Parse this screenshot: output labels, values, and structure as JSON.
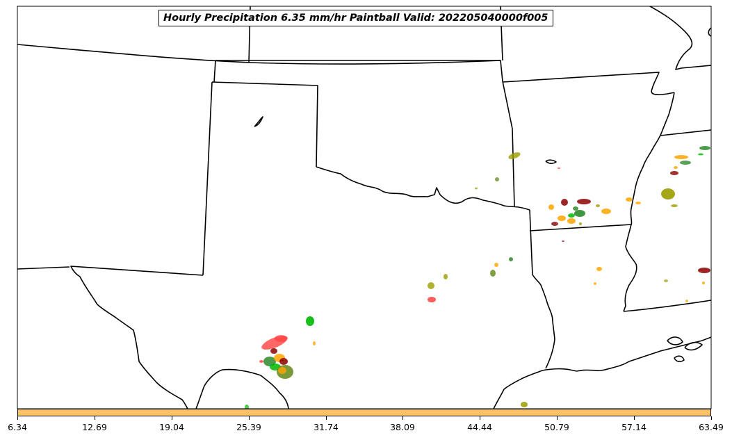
{
  "title": "Hourly Precipitation 6.35 mm/hr Paintball Valid: 202205040000f005",
  "colorbar": {
    "color": "#ffc266",
    "ticks": [
      "6.34",
      "12.69",
      "19.04",
      "25.39",
      "31.74",
      "38.09",
      "44.44",
      "50.79",
      "57.14",
      "63.49"
    ]
  },
  "map": {
    "region": [
      "Texas",
      "Oklahoma",
      "Kansas",
      "New Mexico",
      "Arkansas",
      "Louisiana",
      "Missouri",
      "Mississippi"
    ],
    "member_colors": [
      "#ff4040",
      "#00b800",
      "#ffa500",
      "#8b0000",
      "#9c9c00",
      "#2e8b2e",
      "#6b8e23"
    ]
  }
}
